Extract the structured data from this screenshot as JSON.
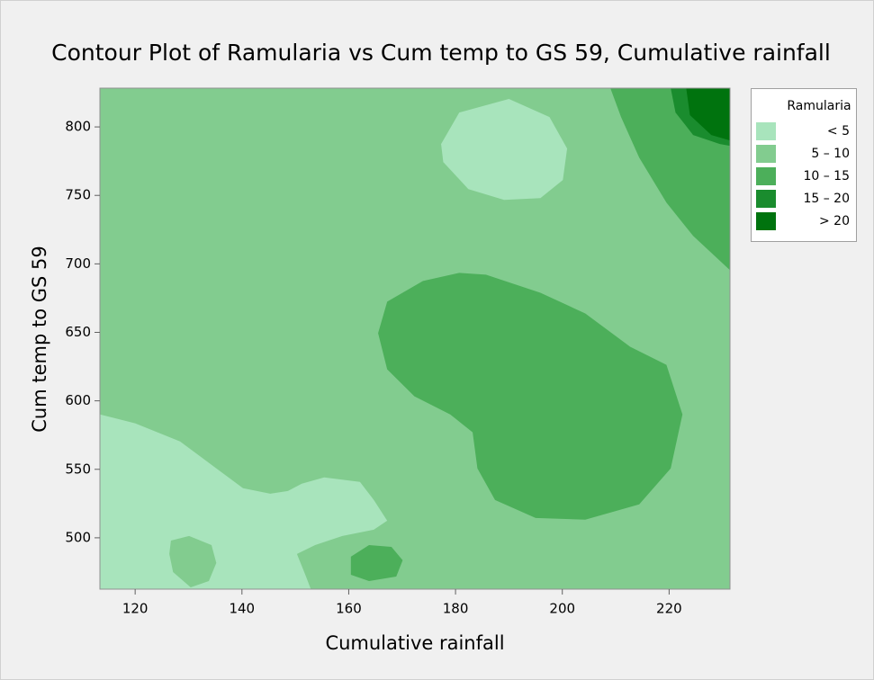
{
  "chart_data": {
    "type": "contour",
    "title": "Contour Plot of Ramularia vs Cum temp to GS 59, Cumulative rainfall",
    "x_label": "Cumulative rainfall",
    "y_label": "Cum temp to GS 59",
    "xlim": [
      113.4,
      231.4
    ],
    "ylim": [
      462.5,
      828.3
    ],
    "xticks": [
      120,
      140,
      160,
      180,
      200,
      220
    ],
    "yticks": [
      500,
      550,
      600,
      650,
      700,
      750,
      800
    ],
    "legend_title": "Ramularia",
    "legend_position": "right",
    "levels": [
      {
        "name": "< 5",
        "color": "#a8e4bc"
      },
      {
        "name": "5 – 10",
        "color": "#82cc8f"
      },
      {
        "name": "10 – 15",
        "color": "#4caf5a"
      },
      {
        "name": "15 – 20",
        "color": "#1a8c2e"
      },
      {
        "name": "> 20",
        "color": "#00730e"
      }
    ],
    "regions": [
      {
        "level": 1,
        "points": [
          [
            113.4,
            462.5
          ],
          [
            113.4,
            828.3
          ],
          [
            231.4,
            828.3
          ],
          [
            231.4,
            462.5
          ]
        ]
      },
      {
        "level": 0,
        "points": [
          [
            113.4,
            590.1
          ],
          [
            120.0,
            583.6
          ],
          [
            128.4,
            570.4
          ],
          [
            135.2,
            550.7
          ],
          [
            140.2,
            536.2
          ],
          [
            145.3,
            532.2
          ],
          [
            148.6,
            534.2
          ],
          [
            151.2,
            539.5
          ],
          [
            155.4,
            544.1
          ],
          [
            162.1,
            540.8
          ],
          [
            164.7,
            527.6
          ],
          [
            167.2,
            512.5
          ],
          [
            164.7,
            505.9
          ],
          [
            158.8,
            501.3
          ],
          [
            153.7,
            494.7
          ],
          [
            150.3,
            488.2
          ],
          [
            152.0,
            471.7
          ],
          [
            152.9,
            462.5
          ],
          [
            113.4,
            462.5
          ]
        ]
      },
      {
        "level": 1,
        "points": [
          [
            126.7,
            498.0
          ],
          [
            130.1,
            501.3
          ],
          [
            134.3,
            494.7
          ],
          [
            135.2,
            481.6
          ],
          [
            133.8,
            468.4
          ],
          [
            130.4,
            463.8
          ],
          [
            127.1,
            475.0
          ],
          [
            126.4,
            488.2
          ]
        ]
      },
      {
        "level": 0,
        "points": [
          [
            177.3,
            787.5
          ],
          [
            180.7,
            810.5
          ],
          [
            190.0,
            820.4
          ],
          [
            197.6,
            807.2
          ],
          [
            200.9,
            784.2
          ],
          [
            200.1,
            761.2
          ],
          [
            195.9,
            748.0
          ],
          [
            189.1,
            746.7
          ],
          [
            182.4,
            754.6
          ],
          [
            177.7,
            774.4
          ]
        ]
      },
      {
        "level": 2,
        "points": [
          [
            165.5,
            649.4
          ],
          [
            167.2,
            672.4
          ],
          [
            173.9,
            687.5
          ],
          [
            180.7,
            693.4
          ],
          [
            185.7,
            692.1
          ],
          [
            195.9,
            678.9
          ],
          [
            204.3,
            663.8
          ],
          [
            212.7,
            639.5
          ],
          [
            219.5,
            626.3
          ],
          [
            222.5,
            590.1
          ],
          [
            220.3,
            550.7
          ],
          [
            214.4,
            524.4
          ],
          [
            204.3,
            513.2
          ],
          [
            195.0,
            514.5
          ],
          [
            187.4,
            527.6
          ],
          [
            184.1,
            550.7
          ],
          [
            183.2,
            577.0
          ],
          [
            179.0,
            590.1
          ],
          [
            172.3,
            603.3
          ],
          [
            167.2,
            623.0
          ]
        ]
      },
      {
        "level": 2,
        "points": [
          [
            160.4,
            486.2
          ],
          [
            163.8,
            494.7
          ],
          [
            168.0,
            493.4
          ],
          [
            170.1,
            483.6
          ],
          [
            168.9,
            471.7
          ],
          [
            163.8,
            468.4
          ],
          [
            160.4,
            473.0
          ]
        ]
      },
      {
        "level": 2,
        "points": [
          [
            209.0,
            828.3
          ],
          [
            211.0,
            807.2
          ],
          [
            214.4,
            777.6
          ],
          [
            219.5,
            744.7
          ],
          [
            224.5,
            720.4
          ],
          [
            231.4,
            695.4
          ],
          [
            231.4,
            828.3
          ]
        ]
      },
      {
        "level": 3,
        "points": [
          [
            220.3,
            828.3
          ],
          [
            221.2,
            810.5
          ],
          [
            224.5,
            794.1
          ],
          [
            229.5,
            787.5
          ],
          [
            231.4,
            786.2
          ],
          [
            231.4,
            828.3
          ]
        ]
      },
      {
        "level": 4,
        "points": [
          [
            223.2,
            828.3
          ],
          [
            223.9,
            808.6
          ],
          [
            227.9,
            794.1
          ],
          [
            231.4,
            790.1
          ],
          [
            231.4,
            828.3
          ]
        ]
      }
    ]
  }
}
